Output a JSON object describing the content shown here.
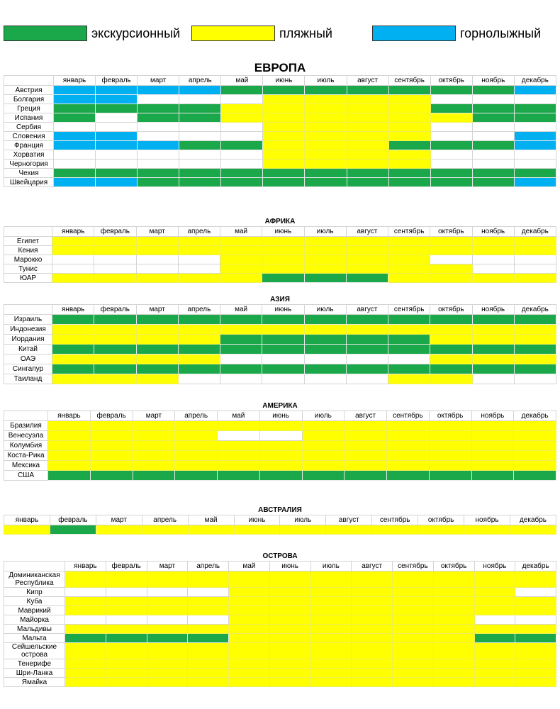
{
  "legend": [
    {
      "label": "экскурсионный",
      "color": "#1aa84a"
    },
    {
      "label": "пляжный",
      "color": "#ffff00"
    },
    {
      "label": "горнолыжный",
      "color": "#00b0f0"
    }
  ],
  "sections": [
    {
      "title": "ЕВРОПА",
      "months": [
        "январь",
        "февраль",
        "март",
        "апрель",
        "май",
        "июнь",
        "июль",
        "август",
        "сентябрь",
        "октябрь",
        "ноябрь",
        "декабрь"
      ],
      "rows": [
        {
          "name": "Австрия",
          "cells": [
            "#00b0f0",
            "#00b0f0",
            "#00b0f0",
            "#00b0f0",
            "#1aa84a",
            "#1aa84a",
            "#1aa84a",
            "#1aa84a",
            "#1aa84a",
            "#1aa84a",
            "#1aa84a",
            "#00b0f0"
          ]
        },
        {
          "name": "Болгария",
          "cells": [
            "#00b0f0",
            "#00b0f0",
            null,
            null,
            null,
            "#ffff00",
            "#ffff00",
            "#ffff00",
            "#ffff00",
            null,
            null,
            null
          ]
        },
        {
          "name": "Греция",
          "cells": [
            "#1aa84a",
            "#1aa84a",
            "#1aa84a",
            "#1aa84a",
            "#ffff00",
            "#ffff00",
            "#ffff00",
            "#ffff00",
            "#ffff00",
            "#1aa84a",
            "#1aa84a",
            "#1aa84a"
          ]
        },
        {
          "name": "Испания",
          "cells": [
            "#1aa84a",
            null,
            "#1aa84a",
            "#1aa84a",
            "#ffff00",
            "#ffff00",
            "#ffff00",
            "#ffff00",
            "#ffff00",
            "#ffff00",
            "#1aa84a",
            "#1aa84a"
          ]
        },
        {
          "name": "Сербия",
          "cells": [
            null,
            null,
            null,
            null,
            null,
            "#ffff00",
            "#ffff00",
            "#ffff00",
            "#ffff00",
            null,
            null,
            null
          ]
        },
        {
          "name": "Словения",
          "cells": [
            "#00b0f0",
            "#00b0f0",
            null,
            null,
            null,
            "#ffff00",
            "#ffff00",
            "#ffff00",
            "#ffff00",
            null,
            null,
            "#00b0f0"
          ]
        },
        {
          "name": "Франция",
          "cells": [
            "#00b0f0",
            "#00b0f0",
            "#00b0f0",
            "#1aa84a",
            "#1aa84a",
            "#ffff00",
            "#ffff00",
            "#ffff00",
            "#1aa84a",
            "#1aa84a",
            "#1aa84a",
            "#00b0f0"
          ]
        },
        {
          "name": "Хорватия",
          "cells": [
            null,
            null,
            null,
            null,
            null,
            "#ffff00",
            "#ffff00",
            "#ffff00",
            "#ffff00",
            null,
            null,
            null
          ]
        },
        {
          "name": "Черногория",
          "cells": [
            null,
            null,
            null,
            null,
            null,
            "#ffff00",
            "#ffff00",
            "#ffff00",
            "#ffff00",
            null,
            null,
            null
          ]
        },
        {
          "name": "Чехия",
          "cells": [
            "#1aa84a",
            "#1aa84a",
            "#1aa84a",
            "#1aa84a",
            "#1aa84a",
            "#1aa84a",
            "#1aa84a",
            "#1aa84a",
            "#1aa84a",
            "#1aa84a",
            "#1aa84a",
            "#1aa84a"
          ]
        },
        {
          "name": "Швейцария",
          "cells": [
            "#00b0f0",
            "#00b0f0",
            "#1aa84a",
            "#1aa84a",
            "#1aa84a",
            "#1aa84a",
            "#1aa84a",
            "#1aa84a",
            "#1aa84a",
            "#1aa84a",
            "#1aa84a",
            "#00b0f0"
          ]
        }
      ]
    },
    {
      "title": "АФРИКА",
      "months": [
        "январь",
        "февраль",
        "март",
        "апрель",
        "май",
        "июнь",
        "июль",
        "август",
        "сентябрь",
        "октябрь",
        "ноябрь",
        "декабрь"
      ],
      "rows": [
        {
          "name": "Египет",
          "cells": [
            "#ffff00",
            "#ffff00",
            "#ffff00",
            "#ffff00",
            "#ffff00",
            "#ffff00",
            "#ffff00",
            "#ffff00",
            "#ffff00",
            "#ffff00",
            "#ffff00",
            "#ffff00"
          ]
        },
        {
          "name": "Кения",
          "cells": [
            "#ffff00",
            "#ffff00",
            "#ffff00",
            "#ffff00",
            "#ffff00",
            "#ffff00",
            "#ffff00",
            "#ffff00",
            "#ffff00",
            "#ffff00",
            "#ffff00",
            "#ffff00"
          ]
        },
        {
          "name": "Марокко",
          "cells": [
            null,
            null,
            null,
            null,
            "#ffff00",
            "#ffff00",
            "#ffff00",
            "#ffff00",
            "#ffff00",
            null,
            null,
            null
          ]
        },
        {
          "name": "Тунис",
          "cells": [
            null,
            null,
            null,
            null,
            "#ffff00",
            "#ffff00",
            "#ffff00",
            "#ffff00",
            "#ffff00",
            "#ffff00",
            null,
            null
          ]
        },
        {
          "name": "ЮАР",
          "cells": [
            "#ffff00",
            "#ffff00",
            "#ffff00",
            "#ffff00",
            "#ffff00",
            "#1aa84a",
            "#1aa84a",
            "#1aa84a",
            "#ffff00",
            "#ffff00",
            "#ffff00",
            "#ffff00"
          ]
        }
      ]
    },
    {
      "title": "АЗИЯ",
      "months": [
        "январь",
        "февраль",
        "март",
        "апрель",
        "май",
        "июнь",
        "июль",
        "август",
        "сентябрь",
        "октябрь",
        "ноябрь",
        "декабрь"
      ],
      "rows": [
        {
          "name": "Израиль",
          "cells": [
            "#1aa84a",
            "#1aa84a",
            "#1aa84a",
            "#1aa84a",
            "#1aa84a",
            "#1aa84a",
            "#1aa84a",
            "#1aa84a",
            "#1aa84a",
            "#1aa84a",
            "#1aa84a",
            "#1aa84a"
          ]
        },
        {
          "name": "Индонезия",
          "cells": [
            "#ffff00",
            "#ffff00",
            "#ffff00",
            "#ffff00",
            "#ffff00",
            "#ffff00",
            "#ffff00",
            "#ffff00",
            "#ffff00",
            "#ffff00",
            "#ffff00",
            "#ffff00"
          ]
        },
        {
          "name": "Иордания",
          "cells": [
            "#ffff00",
            "#ffff00",
            "#ffff00",
            "#ffff00",
            "#1aa84a",
            "#1aa84a",
            "#1aa84a",
            "#1aa84a",
            "#1aa84a",
            "#ffff00",
            "#ffff00",
            "#ffff00"
          ]
        },
        {
          "name": "Китай",
          "cells": [
            "#1aa84a",
            "#1aa84a",
            "#1aa84a",
            "#1aa84a",
            "#1aa84a",
            "#1aa84a",
            "#1aa84a",
            "#1aa84a",
            "#1aa84a",
            "#1aa84a",
            "#1aa84a",
            "#1aa84a"
          ]
        },
        {
          "name": "ОАЭ",
          "cells": [
            "#ffff00",
            "#ffff00",
            "#ffff00",
            "#ffff00",
            null,
            null,
            null,
            null,
            null,
            "#ffff00",
            "#ffff00",
            "#ffff00"
          ]
        },
        {
          "name": "Сингапур",
          "cells": [
            "#1aa84a",
            "#1aa84a",
            "#1aa84a",
            "#1aa84a",
            "#1aa84a",
            "#1aa84a",
            "#1aa84a",
            "#1aa84a",
            "#1aa84a",
            "#1aa84a",
            "#1aa84a",
            "#1aa84a"
          ]
        },
        {
          "name": "Таиланд",
          "cells": [
            "#ffff00",
            "#ffff00",
            "#ffff00",
            null,
            null,
            null,
            null,
            null,
            "#ffff00",
            "#ffff00",
            null,
            null
          ]
        }
      ]
    },
    {
      "title": "АМЕРИКА",
      "months": [
        "январь",
        "февраль",
        "март",
        "апрель",
        "май",
        "июнь",
        "июль",
        "август",
        "сентябрь",
        "октябрь",
        "ноябрь",
        "декабрь"
      ],
      "rows": [
        {
          "name": "Бразилия",
          "cells": [
            "#ffff00",
            "#ffff00",
            "#ffff00",
            "#ffff00",
            "#ffff00",
            "#ffff00",
            "#ffff00",
            "#ffff00",
            "#ffff00",
            "#ffff00",
            "#ffff00",
            "#ffff00"
          ]
        },
        {
          "name": "Венесуэла",
          "cells": [
            "#ffff00",
            "#ffff00",
            "#ffff00",
            "#ffff00",
            null,
            null,
            "#ffff00",
            "#ffff00",
            "#ffff00",
            "#ffff00",
            "#ffff00",
            "#ffff00"
          ]
        },
        {
          "name": "Колумбия",
          "cells": [
            "#ffff00",
            "#ffff00",
            "#ffff00",
            "#ffff00",
            "#ffff00",
            "#ffff00",
            "#ffff00",
            "#ffff00",
            "#ffff00",
            "#ffff00",
            "#ffff00",
            "#ffff00"
          ]
        },
        {
          "name": "Коста-Рика",
          "cells": [
            "#ffff00",
            "#ffff00",
            "#ffff00",
            "#ffff00",
            "#ffff00",
            "#ffff00",
            "#ffff00",
            "#ffff00",
            "#ffff00",
            "#ffff00",
            "#ffff00",
            "#ffff00"
          ]
        },
        {
          "name": "Мексика",
          "cells": [
            "#ffff00",
            "#ffff00",
            "#ffff00",
            "#ffff00",
            "#ffff00",
            "#ffff00",
            "#ffff00",
            "#ffff00",
            "#ffff00",
            "#ffff00",
            "#ffff00",
            "#ffff00"
          ]
        },
        {
          "name": "США",
          "cells": [
            "#1aa84a",
            "#1aa84a",
            "#1aa84a",
            "#1aa84a",
            "#1aa84a",
            "#1aa84a",
            "#1aa84a",
            "#1aa84a",
            "#1aa84a",
            "#1aa84a",
            "#1aa84a",
            "#1aa84a"
          ]
        }
      ]
    },
    {
      "title": "АВСТРАЛИЯ",
      "months": [
        "январь",
        "февраль",
        "март",
        "апрель",
        "май",
        "июнь",
        "июль",
        "август",
        "сентябрь",
        "октябрь",
        "ноябрь",
        "декабрь"
      ],
      "rows": [
        {
          "cells": [
            "#ffff00",
            "#1aa84a",
            "#ffff00",
            "#ffff00",
            "#ffff00",
            "#ffff00",
            "#ffff00",
            "#ffff00",
            "#ffff00",
            "#ffff00",
            "#ffff00",
            "#ffff00"
          ]
        }
      ]
    },
    {
      "title": "ОСТРОВА",
      "months": [
        "январь",
        "февраль",
        "март",
        "апрель",
        "май",
        "июнь",
        "июль",
        "август",
        "сентябрь",
        "октябрь",
        "ноябрь",
        "декабрь"
      ],
      "rows": [
        {
          "name": "Доминиканская Республика",
          "cells": [
            "#ffff00",
            "#ffff00",
            "#ffff00",
            "#ffff00",
            "#ffff00",
            "#ffff00",
            "#ffff00",
            "#ffff00",
            "#ffff00",
            "#ffff00",
            "#ffff00",
            "#ffff00"
          ]
        },
        {
          "name": "Кипр",
          "cells": [
            null,
            null,
            null,
            null,
            "#ffff00",
            "#ffff00",
            "#ffff00",
            "#ffff00",
            "#ffff00",
            "#ffff00",
            "#ffff00",
            null
          ]
        },
        {
          "name": "Куба",
          "cells": [
            "#ffff00",
            "#ffff00",
            "#ffff00",
            "#ffff00",
            "#ffff00",
            "#ffff00",
            "#ffff00",
            "#ffff00",
            "#ffff00",
            "#ffff00",
            "#ffff00",
            "#ffff00"
          ]
        },
        {
          "name": "Маврикий",
          "cells": [
            "#ffff00",
            "#ffff00",
            "#ffff00",
            "#ffff00",
            "#ffff00",
            "#ffff00",
            "#ffff00",
            "#ffff00",
            "#ffff00",
            "#ffff00",
            "#ffff00",
            "#ffff00"
          ]
        },
        {
          "name": "Майорка",
          "cells": [
            null,
            null,
            null,
            null,
            "#ffff00",
            "#ffff00",
            "#ffff00",
            "#ffff00",
            "#ffff00",
            "#ffff00",
            null,
            null
          ]
        },
        {
          "name": "Мальдивы",
          "cells": [
            "#ffff00",
            "#ffff00",
            "#ffff00",
            "#ffff00",
            "#ffff00",
            "#ffff00",
            "#ffff00",
            "#ffff00",
            "#ffff00",
            "#ffff00",
            "#ffff00",
            "#ffff00"
          ]
        },
        {
          "name": "Мальта",
          "cells": [
            "#1aa84a",
            "#1aa84a",
            "#1aa84a",
            "#1aa84a",
            "#ffff00",
            "#ffff00",
            "#ffff00",
            "#ffff00",
            "#ffff00",
            "#ffff00",
            "#1aa84a",
            "#1aa84a"
          ]
        },
        {
          "name": "Сейшельские острова",
          "cells": [
            "#ffff00",
            "#ffff00",
            "#ffff00",
            "#ffff00",
            "#ffff00",
            "#ffff00",
            "#ffff00",
            "#ffff00",
            "#ffff00",
            "#ffff00",
            "#ffff00",
            "#ffff00"
          ]
        },
        {
          "name": "Тенерифе",
          "cells": [
            "#ffff00",
            "#ffff00",
            "#ffff00",
            "#ffff00",
            "#ffff00",
            "#ffff00",
            "#ffff00",
            "#ffff00",
            "#ffff00",
            "#ffff00",
            "#ffff00",
            "#ffff00"
          ]
        },
        {
          "name": "Шри-Ланка",
          "cells": [
            "#ffff00",
            "#ffff00",
            "#ffff00",
            "#ffff00",
            "#ffff00",
            "#ffff00",
            "#ffff00",
            "#ffff00",
            "#ffff00",
            "#ffff00",
            "#ffff00",
            "#ffff00"
          ]
        },
        {
          "name": "Ямайка",
          "cells": [
            "#ffff00",
            "#ffff00",
            "#ffff00",
            "#ffff00",
            "#ffff00",
            "#ffff00",
            "#ffff00",
            "#ffff00",
            "#ffff00",
            "#ffff00",
            "#ffff00",
            "#ffff00"
          ]
        }
      ]
    }
  ]
}
